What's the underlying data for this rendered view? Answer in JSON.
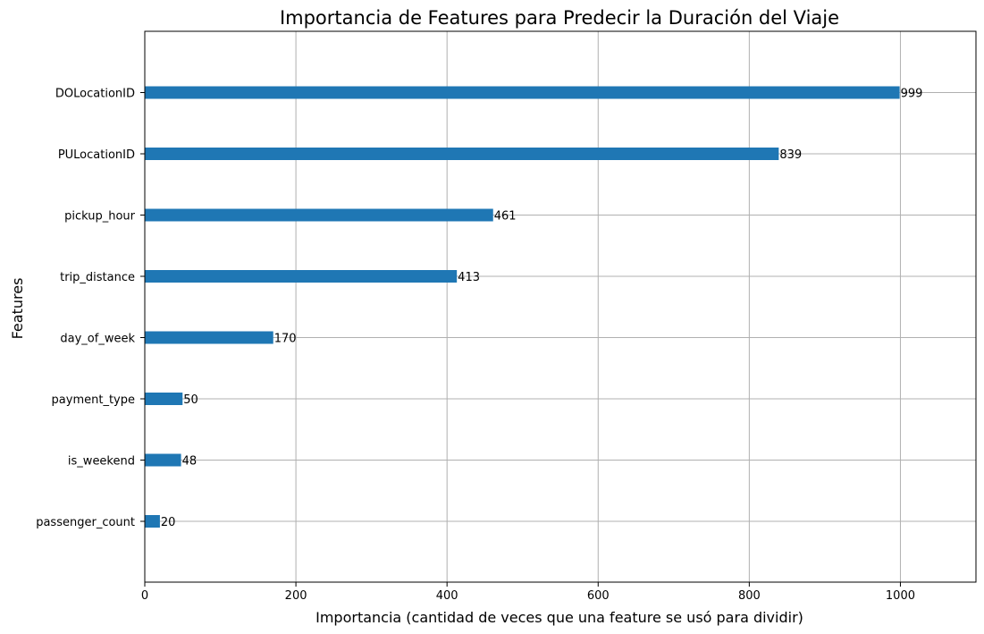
{
  "chart_data": {
    "type": "bar",
    "orientation": "horizontal",
    "title": "Importancia de Features para Predecir la Duración del Viaje",
    "xlabel": "Importancia (cantidad de veces que una feature se usó para dividir)",
    "ylabel": "Features",
    "categories": [
      "DOLocationID",
      "PULocationID",
      "pickup_hour",
      "trip_distance",
      "day_of_week",
      "payment_type",
      "is_weekend",
      "passenger_count"
    ],
    "values": [
      999,
      839,
      461,
      413,
      170,
      50,
      48,
      20
    ],
    "xlim": [
      0,
      1100
    ],
    "xticks": [
      0,
      200,
      400,
      600,
      800,
      1000
    ],
    "grid": true,
    "bar_color": "#1f77b4"
  }
}
